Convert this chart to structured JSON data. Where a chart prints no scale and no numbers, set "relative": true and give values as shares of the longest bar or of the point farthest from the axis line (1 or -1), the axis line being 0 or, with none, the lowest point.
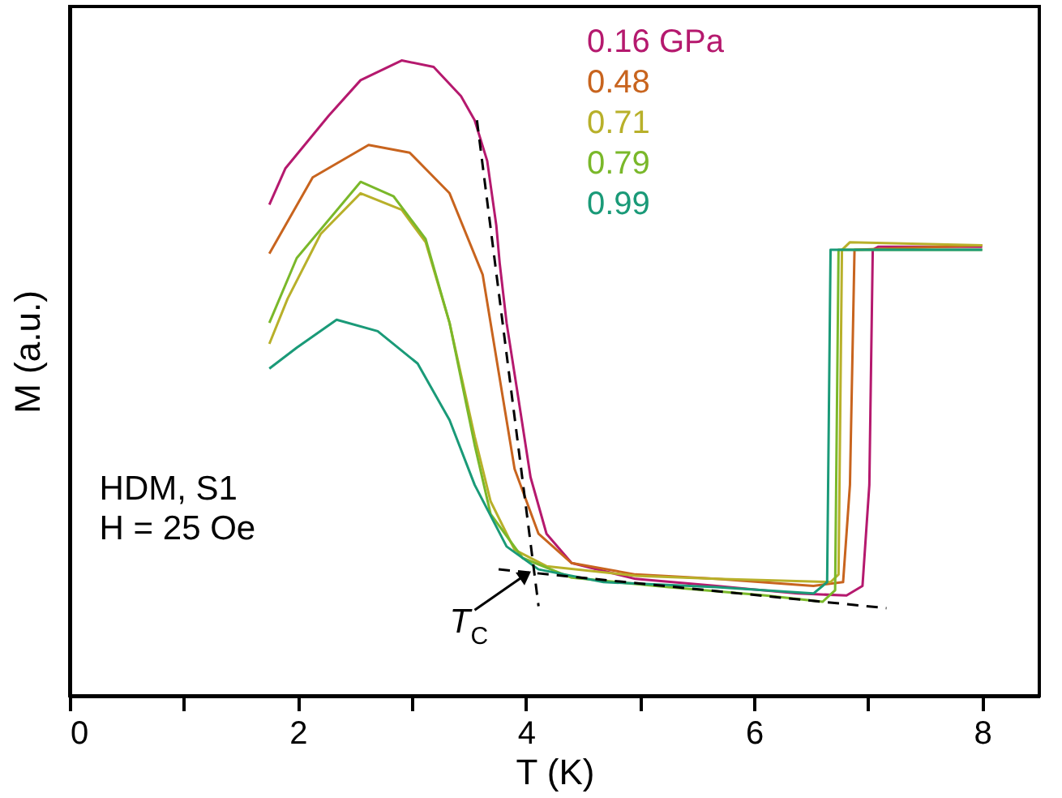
{
  "chart_data": {
    "type": "line",
    "relative": true,
    "xlabel": "T (K)",
    "ylabel": "M (a.u.)",
    "xlim": [
      0,
      8.5
    ],
    "xticks": [
      0,
      {
        "value": 1,
        "label": null
      },
      2,
      {
        "value": 3,
        "label": null
      },
      4,
      {
        "value": 5,
        "label": null
      },
      6,
      {
        "value": 7,
        "label": null
      },
      8
    ],
    "legend": "top right",
    "annotations": [
      "HDM, S1",
      "H = 25 Oe",
      {
        "text": "T$_{C}$",
        "x": 4.05,
        "y": 0.2
      }
    ],
    "series": [
      {
        "name": "0.16 GPa",
        "color": "#b5196e",
        "x": [
          1.75,
          1.89,
          2.27,
          2.55,
          2.91,
          3.19,
          3.43,
          3.55,
          3.66,
          3.74,
          3.77,
          3.83,
          3.93,
          4.04,
          4.18,
          4.4,
          4.96,
          5.67,
          6.38,
          6.81,
          6.95,
          7.01,
          7.04,
          7.09,
          8.0
        ],
        "values": [
          0.773,
          0.83,
          0.913,
          0.969,
          1.0,
          0.99,
          0.944,
          0.906,
          0.842,
          0.74,
          0.68,
          0.587,
          0.472,
          0.344,
          0.255,
          0.209,
          0.184,
          0.173,
          0.161,
          0.158,
          0.173,
          0.332,
          0.702,
          0.707,
          0.707
        ]
      },
      {
        "name": "0.48",
        "color": "#c8641e",
        "x": [
          1.75,
          2.13,
          2.62,
          2.98,
          3.33,
          3.62,
          3.76,
          3.9,
          4.11,
          4.4,
          4.96,
          5.67,
          6.52,
          6.78,
          6.84,
          6.88,
          8.0
        ],
        "values": [
          0.696,
          0.816,
          0.867,
          0.855,
          0.791,
          0.663,
          0.51,
          0.357,
          0.255,
          0.209,
          0.191,
          0.184,
          0.173,
          0.179,
          0.332,
          0.702,
          0.709
        ]
      },
      {
        "name": "0.71",
        "color": "#b8b02a",
        "x": [
          1.75,
          1.91,
          2.2,
          2.55,
          2.91,
          3.12,
          3.33,
          3.55,
          3.69,
          3.9,
          4.18,
          4.96,
          5.67,
          6.67,
          6.74,
          6.77,
          6.84,
          8.0
        ],
        "values": [
          0.554,
          0.625,
          0.727,
          0.791,
          0.765,
          0.714,
          0.587,
          0.408,
          0.306,
          0.23,
          0.204,
          0.189,
          0.184,
          0.179,
          0.191,
          0.702,
          0.714,
          0.709
        ]
      },
      {
        "name": "0.79",
        "color": "#7ab82a",
        "x": [
          1.75,
          1.99,
          2.55,
          2.84,
          3.12,
          3.33,
          3.55,
          3.69,
          3.97,
          4.4,
          5.25,
          6.1,
          6.6,
          6.71,
          6.74,
          8.0
        ],
        "values": [
          0.587,
          0.689,
          0.809,
          0.786,
          0.719,
          0.587,
          0.395,
          0.286,
          0.217,
          0.186,
          0.171,
          0.158,
          0.148,
          0.166,
          0.702,
          0.702
        ]
      },
      {
        "name": "0.99",
        "color": "#1a9a78",
        "x": [
          1.75,
          1.99,
          2.34,
          2.7,
          3.05,
          3.33,
          3.55,
          3.83,
          4.11,
          4.68,
          5.67,
          6.52,
          6.64,
          6.67,
          8.0
        ],
        "values": [
          0.515,
          0.548,
          0.592,
          0.574,
          0.523,
          0.434,
          0.332,
          0.235,
          0.199,
          0.179,
          0.171,
          0.161,
          0.179,
          0.702,
          0.702
        ]
      },
      {
        "type": "line",
        "color": "#000000",
        "line_style": "dashed",
        "x": [
          3.57,
          4.11
        ],
        "values": [
          0.906,
          0.141
        ]
      },
      {
        "type": "line",
        "color": "#000000",
        "line_style": "dashed",
        "x": [
          3.76,
          7.16
        ],
        "values": [
          0.199,
          0.138
        ]
      }
    ]
  }
}
